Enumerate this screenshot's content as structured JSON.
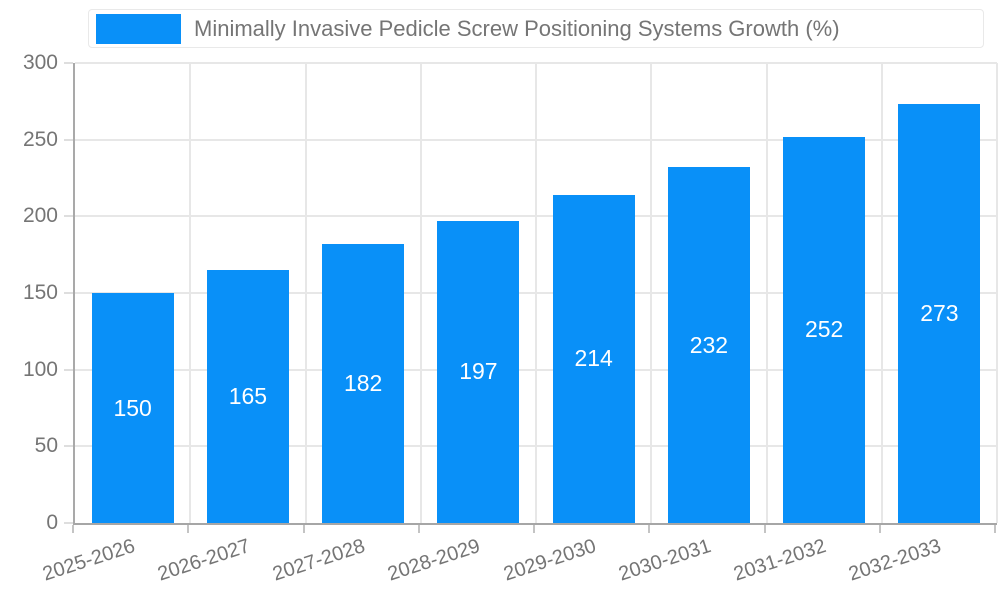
{
  "chart_data": {
    "type": "bar",
    "title": "Minimally Invasive Pedicle Screw Positioning Systems Growth (%)",
    "categories": [
      "2025-2026",
      "2026-2027",
      "2027-2028",
      "2028-2029",
      "2029-2030",
      "2030-2031",
      "2031-2032",
      "2032-2033"
    ],
    "values": [
      150,
      165,
      182,
      197,
      214,
      232,
      252,
      273
    ],
    "xlabel": "",
    "ylabel": "",
    "ylim": [
      0,
      300
    ],
    "yticks": [
      0,
      50,
      100,
      150,
      200,
      250,
      300
    ],
    "grid": true,
    "legend_position": "top",
    "bar_color": "#0990F8",
    "value_label_color": "#ffffff",
    "axis_text_color": "#757575",
    "gridline_color": "#e7e7e7"
  },
  "legend": {
    "label": "Minimally Invasive Pedicle Screw Positioning Systems Growth (%)",
    "swatch_color": "#0990F8"
  }
}
